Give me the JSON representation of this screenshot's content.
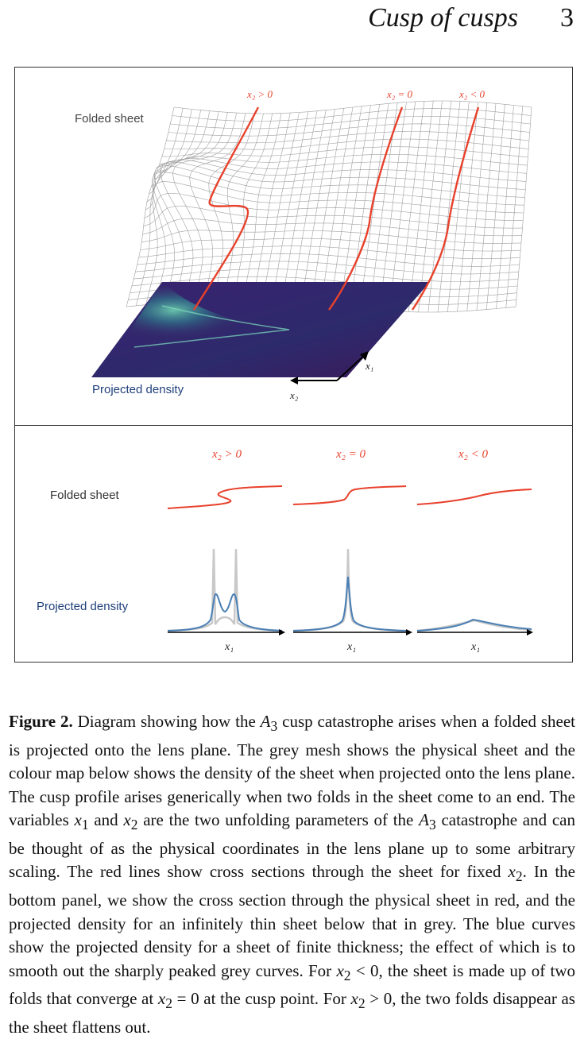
{
  "header": {
    "running_title": "Cusp of cusps",
    "page_number": "3"
  },
  "figure": {
    "top_panel": {
      "label_folded_sheet": "Folded sheet",
      "label_projected_density": "Projected density",
      "label_x2_pos": "x₂ > 0",
      "label_x2_zero": "x₂ = 0",
      "label_x2_neg": "x₂ < 0",
      "axis_x1": "x₁",
      "axis_x2": "x₂",
      "colors": {
        "sheet_mesh": "#9a9a9a",
        "cross_section": "#e8412c",
        "density_low": "#3b1a5a",
        "density_high": "#6fd2b0"
      }
    },
    "bottom_panel": {
      "label_folded_sheet": "Folded sheet",
      "label_projected_density": "Projected density",
      "label_x2_pos": "x₂ > 0",
      "label_x2_zero": "x₂ = 0",
      "label_x2_neg": "x₂ < 0",
      "axis_x1_1": "x₁",
      "axis_x1_2": "x₁",
      "axis_x1_3": "x₁",
      "colors": {
        "cross_section": "#e8412c",
        "thin_density": "#c8c8c8",
        "thick_density": "#4a7fb5"
      }
    }
  },
  "caption": {
    "label": "Figure 2.",
    "p1": " Diagram showing how the ",
    "A": "A",
    "sub3": "3",
    "p2": " cusp catastrophe arises when a folded sheet is projected onto the lens plane. The grey mesh shows the physical sheet and the colour map below shows the density of the sheet when projected onto the lens plane. The cusp profile arises generically when two folds in the sheet come to an end. The variables ",
    "x": "x",
    "sub1": "1",
    "and": " and ",
    "sub2": "2",
    "p3": " are the two unfolding parameters of the ",
    "p4": " catastrophe and can be thought of as the physical coordinates in the lens plane up to some arbitrary scaling. The red lines show cross sections through the sheet for fixed ",
    "p5": ". In the bottom panel, we show the cross section through the physical sheet in red, and the projected density for an infinitely thin sheet below that in grey. The blue curves show the projected density for a sheet of finite thickness; the effect of which is to smooth out the sharply peaked grey curves. For ",
    "lt0": " < 0, the sheet is made up of two folds that converge at ",
    "eq0": " = 0 at the cusp point. For ",
    "gt0": " > 0, the two folds disappear as the sheet flattens out."
  }
}
